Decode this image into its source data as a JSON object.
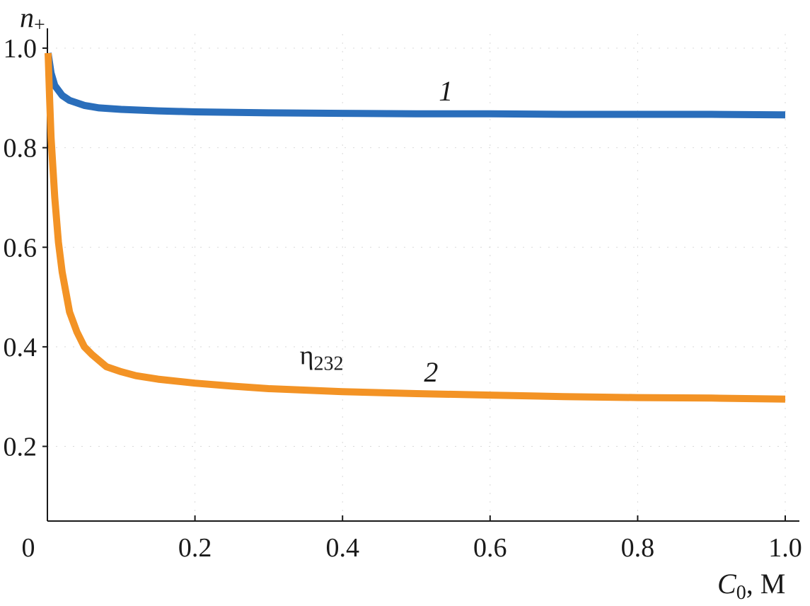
{
  "chart_data": {
    "type": "line",
    "title": "",
    "ylabel": "n",
    "ylabel_sub": "+",
    "xlabel": "C",
    "xlabel_sub": "0",
    "xlabel_unit": ", M",
    "xlim": [
      0,
      1.0
    ],
    "ylim": [
      0.05,
      1.0
    ],
    "x_ticks": [
      {
        "value": 0,
        "label": "0"
      },
      {
        "value": 0.2,
        "label": "0.2"
      },
      {
        "value": 0.4,
        "label": "0.4"
      },
      {
        "value": 0.6,
        "label": "0.6"
      },
      {
        "value": 0.8,
        "label": "0.8"
      },
      {
        "value": 1.0,
        "label": "1.0"
      }
    ],
    "y_ticks": [
      {
        "value": 0.2,
        "label": "0.2"
      },
      {
        "value": 0.4,
        "label": "0.4"
      },
      {
        "value": 0.6,
        "label": "0.6"
      },
      {
        "value": 0.8,
        "label": "0.8"
      },
      {
        "value": 1.0,
        "label": "1.0"
      }
    ],
    "grid": true,
    "series": [
      {
        "name": "1",
        "color": "#2a6ebb",
        "x": [
          0.001,
          0.005,
          0.01,
          0.02,
          0.03,
          0.05,
          0.07,
          0.1,
          0.15,
          0.2,
          0.3,
          0.4,
          0.5,
          0.6,
          0.7,
          0.8,
          0.9,
          1.0
        ],
        "y": [
          0.99,
          0.95,
          0.925,
          0.905,
          0.895,
          0.885,
          0.88,
          0.877,
          0.874,
          0.872,
          0.87,
          0.869,
          0.868,
          0.868,
          0.867,
          0.867,
          0.867,
          0.866
        ]
      },
      {
        "name": "2",
        "color": "#f39325",
        "x": [
          0.001,
          0.003,
          0.005,
          0.01,
          0.015,
          0.02,
          0.03,
          0.04,
          0.05,
          0.06,
          0.08,
          0.1,
          0.12,
          0.15,
          0.2,
          0.25,
          0.3,
          0.4,
          0.5,
          0.6,
          0.7,
          0.8,
          0.9,
          1.0
        ],
        "y": [
          0.99,
          0.9,
          0.82,
          0.7,
          0.61,
          0.55,
          0.47,
          0.43,
          0.4,
          0.385,
          0.36,
          0.35,
          0.342,
          0.335,
          0.327,
          0.321,
          0.316,
          0.31,
          0.306,
          0.303,
          0.3,
          0.298,
          0.297,
          0.295
        ]
      }
    ],
    "series_labels": [
      {
        "text": "1",
        "x": 0.54,
        "y": 0.915
      },
      {
        "text": "2",
        "x": 0.52,
        "y": 0.35
      }
    ],
    "annotations": [
      {
        "text": "η",
        "sub": "232",
        "x": 0.34,
        "y": 0.385
      }
    ]
  }
}
